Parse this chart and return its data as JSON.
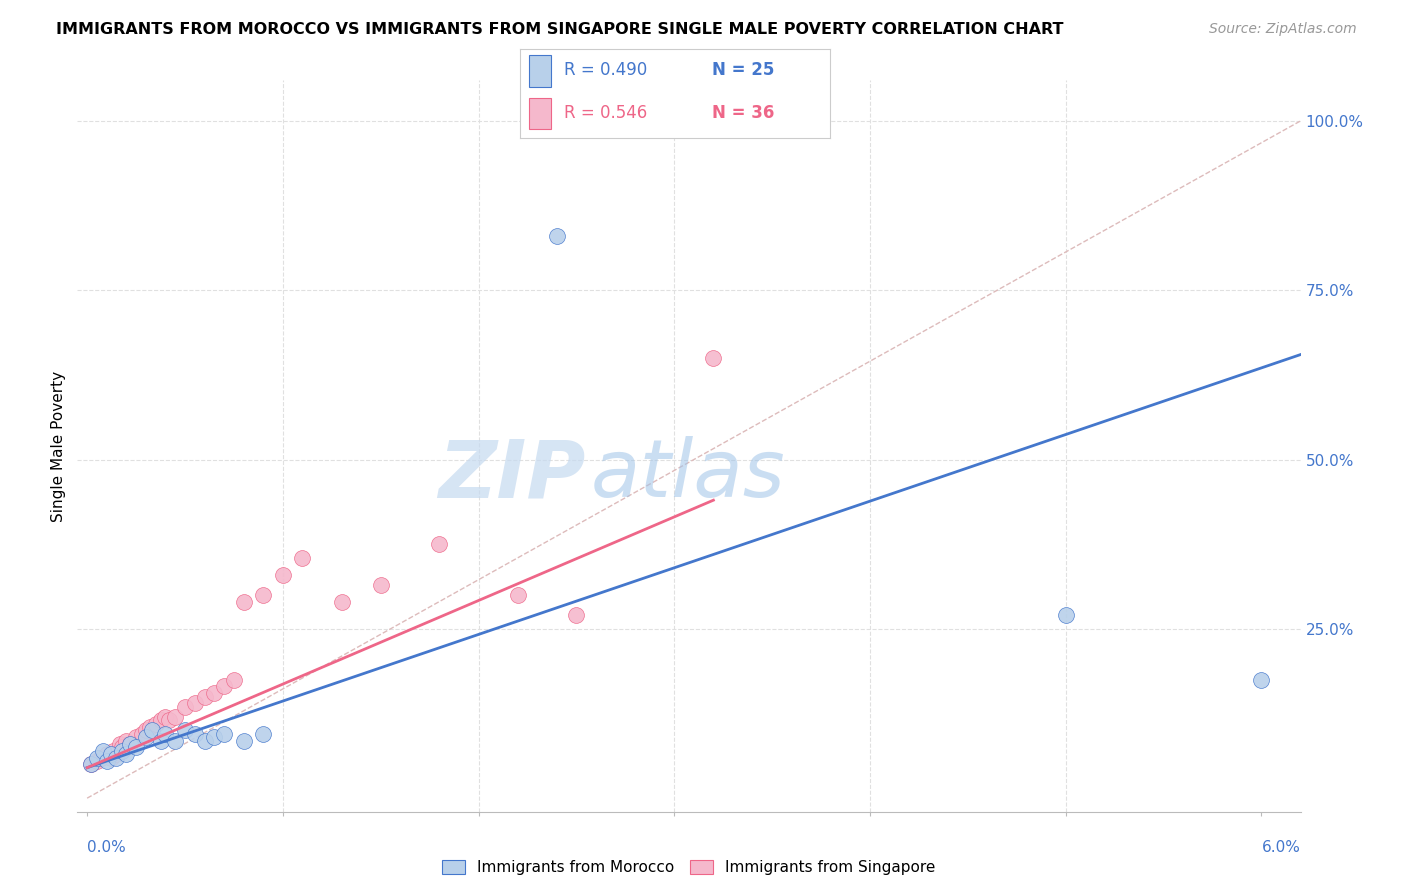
{
  "title": "IMMIGRANTS FROM MOROCCO VS IMMIGRANTS FROM SINGAPORE SINGLE MALE POVERTY CORRELATION CHART",
  "source": "Source: ZipAtlas.com",
  "ylabel": "Single Male Poverty",
  "legend_blue_r": "R = 0.490",
  "legend_blue_n": "N = 25",
  "legend_pink_r": "R = 0.546",
  "legend_pink_n": "N = 36",
  "legend_label_blue": "Immigrants from Morocco",
  "legend_label_pink": "Immigrants from Singapore",
  "blue_color": "#b8d0ea",
  "pink_color": "#f5b8cc",
  "blue_line_color": "#4477cc",
  "pink_line_color": "#ee6688",
  "blue_text_color": "#4477cc",
  "pink_text_color": "#ee6688",
  "watermark_color": "#c8dff5",
  "diag_color": "#ddbbbb",
  "grid_color": "#e0e0e0",
  "morocco_x": [
    0.0002,
    0.0005,
    0.0008,
    0.001,
    0.0012,
    0.0015,
    0.0018,
    0.002,
    0.0022,
    0.0025,
    0.003,
    0.0033,
    0.0038,
    0.004,
    0.0045,
    0.005,
    0.0055,
    0.006,
    0.0065,
    0.007,
    0.008,
    0.009,
    0.024,
    0.05,
    0.06
  ],
  "morocco_y": [
    0.05,
    0.06,
    0.07,
    0.055,
    0.065,
    0.06,
    0.07,
    0.065,
    0.08,
    0.075,
    0.09,
    0.1,
    0.085,
    0.095,
    0.085,
    0.1,
    0.095,
    0.085,
    0.09,
    0.095,
    0.085,
    0.095,
    0.83,
    0.27,
    0.175
  ],
  "singapore_x": [
    0.0002,
    0.0005,
    0.0007,
    0.001,
    0.0012,
    0.0013,
    0.0015,
    0.0017,
    0.0018,
    0.002,
    0.0022,
    0.0025,
    0.0028,
    0.003,
    0.0032,
    0.0035,
    0.0038,
    0.004,
    0.0042,
    0.0045,
    0.005,
    0.0055,
    0.006,
    0.0065,
    0.007,
    0.0075,
    0.008,
    0.009,
    0.01,
    0.011,
    0.013,
    0.015,
    0.018,
    0.022,
    0.025,
    0.032
  ],
  "singapore_y": [
    0.05,
    0.055,
    0.06,
    0.065,
    0.06,
    0.07,
    0.065,
    0.08,
    0.075,
    0.085,
    0.08,
    0.09,
    0.095,
    0.1,
    0.105,
    0.11,
    0.115,
    0.12,
    0.115,
    0.12,
    0.135,
    0.14,
    0.15,
    0.155,
    0.165,
    0.175,
    0.29,
    0.3,
    0.33,
    0.355,
    0.29,
    0.315,
    0.375,
    0.3,
    0.27,
    0.65
  ],
  "xlim": [
    -0.0005,
    0.062
  ],
  "ylim": [
    -0.02,
    1.06
  ],
  "blue_line_x": [
    0.0,
    0.062
  ],
  "blue_line_y": [
    0.045,
    0.655
  ],
  "pink_line_x": [
    0.0,
    0.032
  ],
  "pink_line_y": [
    0.045,
    0.44
  ]
}
